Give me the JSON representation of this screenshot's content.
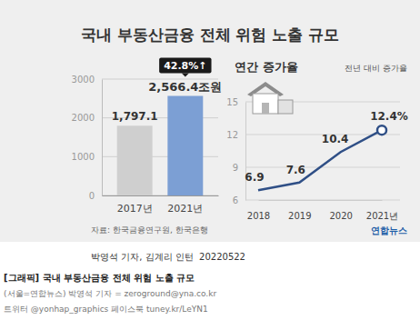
{
  "title": "국내 부동산금융 전체 위험 노출 규모",
  "source": "자료: 한국금융연구원, 한국은행",
  "logo": "연합뉴스",
  "credit": "박영석 기자, 김계리 인턴  20220522",
  "caption": [
    "[그래픽] 국내 부동산금융 전체 위험 노출 규모",
    "(서울=연합뉴스) 박영석 기자 = zeroground@yna.co.kr",
    "트위터 @yonhap_graphics 페이스북 tuney.kr/LeYN1"
  ],
  "chart_data": [
    {
      "type": "bar",
      "categories": [
        "2017년",
        "2021년"
      ],
      "values": [
        1797.1,
        2566.4
      ],
      "value_labels": [
        "1,797.1",
        "2,566.4조원"
      ],
      "colors": [
        "#cfcfcf",
        "#7c9fd4"
      ],
      "annotation": "42.8%↑",
      "ylim": [
        0,
        3000
      ],
      "yticks": [
        0,
        1000,
        2000,
        3000
      ],
      "grid": true,
      "data_labels": true
    },
    {
      "type": "line",
      "title": "연간 증가율",
      "subtitle": "전년 대비 증가율",
      "categories": [
        "2018",
        "2019",
        "2020",
        "2021년"
      ],
      "values": [
        6.9,
        7.6,
        10.4,
        12.4
      ],
      "value_labels": [
        "6.9",
        "7.6",
        "10.4",
        "12.4%"
      ],
      "color": "#2f4f86",
      "marker": "circle",
      "ylim": [
        6,
        15
      ],
      "yticks": [
        6,
        9,
        12,
        15
      ],
      "grid": true,
      "data_labels": true
    }
  ]
}
